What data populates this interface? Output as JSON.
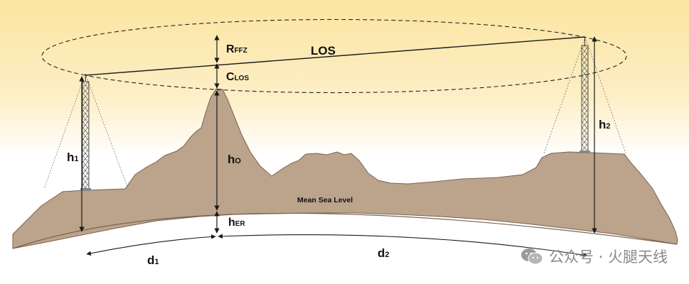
{
  "labels": {
    "los": "LOS",
    "r_main": "R",
    "r_sub": "FFZ",
    "c_main": "C",
    "c_sub": "LOS",
    "h1_main": "h",
    "h1_sub": "1",
    "h2_main": "h",
    "h2_sub": "2",
    "ho_main": "h",
    "ho_sub": "O",
    "her_main": "h",
    "her_sub": "ER",
    "d1_main": "d",
    "d1_sub": "1",
    "d2_main": "d",
    "d2_sub": "2",
    "msl": "Mean Sea Level"
  },
  "watermark": {
    "text": "公众号 · 火腿天线",
    "icon": "wechat-icon"
  },
  "colors": {
    "sky_top": "#fbe6a4",
    "terrain": "#bca38b",
    "terrain_stroke": "#7a6250",
    "line": "#1a1a1a"
  }
}
